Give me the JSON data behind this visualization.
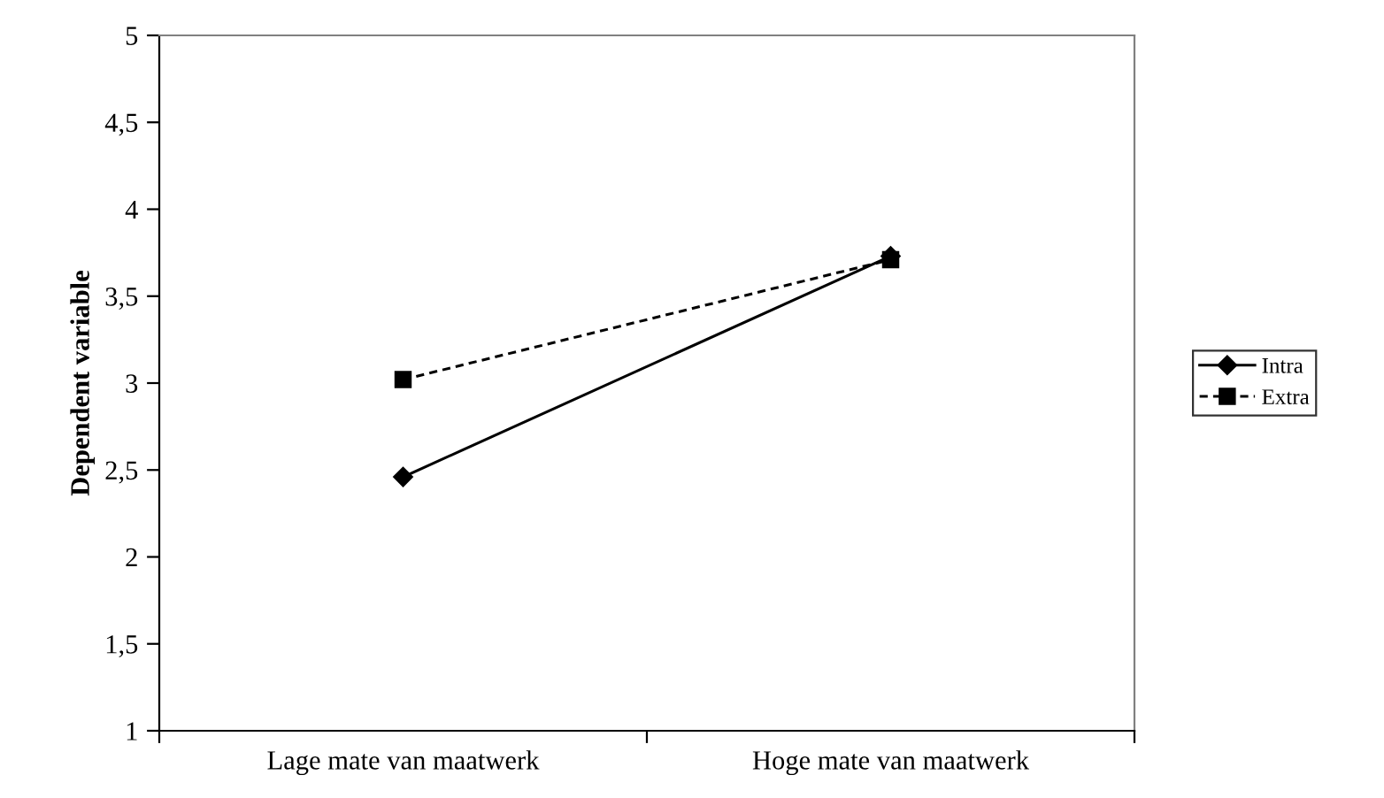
{
  "chart_data": {
    "type": "line",
    "ylabel": "Dependent variable",
    "categories": [
      "Lage mate van maatwerk",
      "Hoge mate van maatwerk"
    ],
    "series": [
      {
        "name": "Intra",
        "color": "#000000",
        "values": [
          2.46,
          3.73
        ],
        "marker": "diamond",
        "line_style": "solid"
      },
      {
        "name": "Extra",
        "color": "#000000",
        "values": [
          3.02,
          3.71
        ],
        "marker": "square",
        "line_style": "dashed"
      }
    ],
    "ylim": [
      1,
      5
    ],
    "yticks": [
      1,
      {
        "value": 1.5,
        "label": "1,5"
      },
      2,
      {
        "value": 2.5,
        "label": "2,5"
      },
      3,
      {
        "value": 3.5,
        "label": "3,5"
      },
      4,
      {
        "value": 4.5,
        "label": "4,5"
      },
      5
    ],
    "grid": false,
    "legend": "right"
  }
}
